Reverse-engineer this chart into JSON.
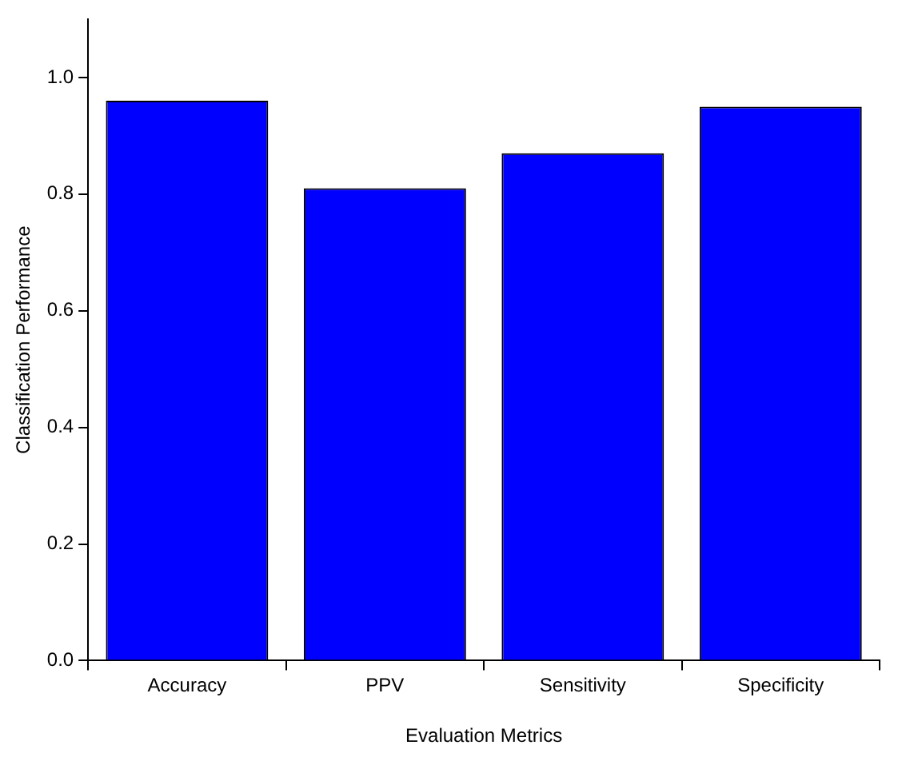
{
  "chart_data": {
    "type": "bar",
    "xlabel": "Evaluation Metrics",
    "ylabel": "Classification Performance",
    "categories": [
      "Accuracy",
      "PPV",
      "Sensitivity",
      "Specificity"
    ],
    "values": [
      0.96,
      0.81,
      0.87,
      0.95
    ],
    "color": "#0000ff",
    "ylim": [
      0,
      1.1
    ],
    "yticks": [
      {
        "value": 0,
        "label": "0.0"
      },
      {
        "value": 0.2,
        "label": "0.2"
      },
      {
        "value": 0.4,
        "label": "0.4"
      },
      {
        "value": 0.6,
        "label": "0.6"
      },
      {
        "value": 0.8,
        "label": "0.8"
      },
      {
        "value": 1,
        "label": "1.0"
      }
    ],
    "grid": false,
    "legend": false
  }
}
